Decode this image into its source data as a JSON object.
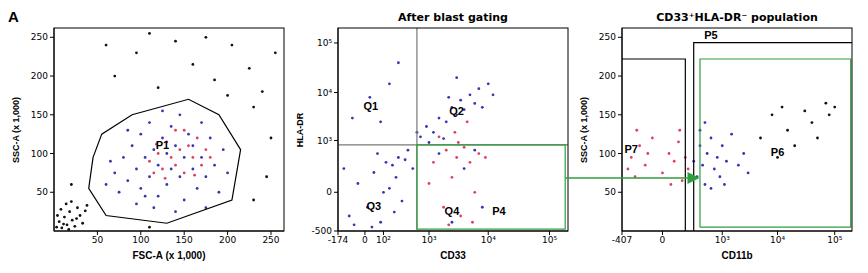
{
  "panel_label": "A",
  "chart_data": [
    {
      "type": "scatter",
      "x_label": "FSC-A (x 1,000)",
      "y_label": "SSC-A (x 1,000)",
      "xlim": [
        0,
        265
      ],
      "ylim": [
        0,
        262
      ],
      "xticks": [
        50,
        100,
        150,
        200,
        250
      ],
      "yticks": [
        50,
        100,
        150,
        200,
        250
      ],
      "series": [
        {
          "color": "#111111",
          "x": [
            3,
            6,
            9,
            12,
            15,
            18,
            21,
            24,
            27,
            30,
            8,
            14,
            33,
            36,
            4,
            20,
            11,
            26,
            38,
            17,
            70,
            95,
            120,
            140,
            160,
            185,
            205,
            225,
            240,
            255,
            110,
            200,
            60,
            175,
            230,
            250,
            245,
            230,
            110,
            20
          ],
          "y": [
            5,
            12,
            4,
            18,
            8,
            25,
            14,
            6,
            30,
            20,
            28,
            35,
            10,
            26,
            20,
            38,
            9,
            16,
            33,
            2,
            200,
            230,
            185,
            245,
            215,
            195,
            240,
            210,
            180,
            230,
            255,
            175,
            240,
            250,
            160,
            120,
            70,
            40,
            5,
            60
          ]
        },
        {
          "color": "#3636b0",
          "x": [
            60,
            70,
            75,
            80,
            85,
            90,
            95,
            100,
            100,
            105,
            110,
            110,
            115,
            120,
            120,
            125,
            130,
            130,
            135,
            135,
            140,
            145,
            145,
            150,
            150,
            155,
            160,
            160,
            165,
            170,
            170,
            175,
            180,
            185,
            190,
            195,
            200,
            95,
            115,
            140,
            65,
            85,
            125,
            105,
            175
          ],
          "y": [
            60,
            75,
            50,
            95,
            65,
            110,
            80,
            55,
            125,
            95,
            70,
            140,
            105,
            85,
            45,
            120,
            60,
            100,
            135,
            80,
            110,
            70,
            150,
            95,
            40,
            125,
            80,
            110,
            55,
            140,
            95,
            70,
            120,
            85,
            50,
            105,
            75,
            35,
            30,
            25,
            90,
            130,
            155,
            45,
            30
          ]
        },
        {
          "color": "#e0405f",
          "x": [
            110,
            115,
            120,
            125,
            130,
            135,
            140,
            145,
            150,
            155,
            160,
            165,
            170,
            175,
            140,
            128,
            150,
            118,
            162,
            180
          ],
          "y": [
            90,
            75,
            100,
            80,
            115,
            95,
            85,
            105,
            75,
            110,
            95,
            120,
            85,
            105,
            130,
            68,
            130,
            112,
            72,
            95
          ]
        }
      ],
      "gates": [
        {
          "color": "#000000",
          "x": [
            45,
            55,
            90,
            155,
            190,
            215,
            205,
            130,
            60,
            40,
            45
          ],
          "y": [
            95,
            125,
            150,
            170,
            150,
            105,
            40,
            10,
            20,
            55,
            95
          ]
        }
      ],
      "annotations": [
        {
          "text": "P1",
          "x": 125,
          "y": 110
        }
      ]
    },
    {
      "type": "scatter",
      "title": "After blast gating",
      "x_label": "CD33",
      "y_label": "HLA-DR",
      "log": true,
      "xlim": [
        -174,
        200000
      ],
      "ylim": [
        -500,
        200000
      ],
      "xticks": [
        -174,
        0,
        {
          "value": 100,
          "label": "10²"
        },
        {
          "value": 1000,
          "label": "10³"
        },
        {
          "value": 10000,
          "label": "10⁴"
        },
        {
          "value": 100000,
          "label": "10⁵"
        }
      ],
      "yticks": [
        -500,
        0,
        {
          "value": 1000,
          "label": "10³"
        },
        {
          "value": 10000,
          "label": "10⁴"
        },
        {
          "value": 100000,
          "label": "10⁵"
        }
      ],
      "series": [
        {
          "color": "#3636b0",
          "x": [
            -80,
            -30,
            10,
            40,
            80,
            120,
            150,
            200,
            250,
            -120,
            30,
            60,
            180,
            300,
            350,
            -50,
            100,
            220,
            400,
            500,
            700,
            900,
            1200,
            1500,
            2000,
            2500,
            3000,
            3500,
            4000,
            5000,
            6000,
            7000,
            8000,
            10000,
            1000,
            1800,
            2200,
            12000,
            600,
            3000,
            -60,
            20,
            150,
            80,
            250,
            1500,
            4000,
            8000,
            2500,
            6000
          ],
          "y": [
            -200,
            50,
            -100,
            150,
            -300,
            300,
            20,
            -150,
            400,
            200,
            -400,
            500,
            250,
            -50,
            350,
            -350,
            0,
            100,
            600,
            200,
            1200,
            2000,
            1500,
            3000,
            2500,
            5000,
            3500,
            7000,
            4500,
            9000,
            6000,
            12000,
            5000,
            15000,
            900,
            1100,
            8000,
            9000,
            1500,
            20000,
            3000,
            8000,
            15000,
            2500,
            40000,
            500,
            200,
            -100,
            -300,
            600
          ]
        },
        {
          "color": "#e0405f",
          "x": [
            1200,
            1800,
            2000,
            2500,
            3000,
            3500,
            4000,
            5000,
            6000,
            7000,
            2800,
            4500,
            1500,
            3200,
            9000,
            2200,
            5500,
            1000
          ],
          "y": [
            300,
            -100,
            600,
            100,
            400,
            -200,
            700,
            300,
            0,
            500,
            1500,
            2500,
            1200,
            900,
            400,
            -350,
            -300,
            50
          ]
        }
      ],
      "gates": [
        {
          "color": "#777777",
          "x": [
            600,
            600
          ],
          "y": [
            -500,
            200000
          ]
        },
        {
          "color": "#777777",
          "x": [
            -174,
            200000
          ],
          "y": [
            800,
            800
          ]
        },
        {
          "color": "#2e9e3e",
          "x": [
            600,
            180000,
            180000,
            600,
            600
          ],
          "y": [
            -450,
            -450,
            800,
            800,
            -450
          ]
        }
      ],
      "annotations": [
        {
          "text": "Q1",
          "x": 25,
          "y": 5000
        },
        {
          "text": "Q2",
          "x": 3000,
          "y": 4000
        },
        {
          "text": "Q3",
          "x": 40,
          "y": -100
        },
        {
          "text": "Q4",
          "x": 2500,
          "y": -150
        },
        {
          "text": "P4",
          "x": 15000,
          "y": -150
        }
      ]
    },
    {
      "type": "scatter",
      "title": "CD33⁺HLA-DR⁻ population",
      "x_label": "CD11b",
      "y_label": "SSC-A (x 1,000)",
      "log": "x",
      "xlim": [
        -407,
        200000
      ],
      "ylim": [
        0,
        262
      ],
      "xticks": [
        -407,
        0,
        {
          "value": 1000,
          "label": "10³"
        },
        {
          "value": 10000,
          "label": "10⁴"
        },
        {
          "value": 100000,
          "label": "10⁵"
        }
      ],
      "yticks": [
        50,
        100,
        150,
        200,
        250
      ],
      "series": [
        {
          "color": "#e0405f",
          "x": [
            -300,
            -250,
            -200,
            -150,
            -100,
            -50,
            0,
            30,
            60,
            90,
            120,
            150,
            -180,
            40,
            100,
            -80,
            180
          ],
          "y": [
            80,
            95,
            70,
            110,
            85,
            120,
            75,
            100,
            90,
            115,
            65,
            95,
            130,
            60,
            130,
            100,
            80
          ]
        },
        {
          "color": "#3636b0",
          "x": [
            250,
            300,
            350,
            400,
            450,
            500,
            600,
            700,
            800,
            900,
            1000,
            1200,
            1500,
            2000,
            2500,
            3000,
            350,
            600,
            1100,
            450
          ],
          "y": [
            90,
            70,
            110,
            85,
            60,
            100,
            120,
            80,
            95,
            70,
            110,
            90,
            125,
            85,
            100,
            75,
            130,
            55,
            60,
            140
          ]
        },
        {
          "color": "#111111",
          "x": [
            5000,
            8000,
            10000,
            15000,
            20000,
            30000,
            40000,
            50000,
            70000,
            80000,
            100000,
            12000
          ],
          "y": [
            120,
            150,
            95,
            130,
            110,
            155,
            140,
            120,
            165,
            150,
            160,
            160
          ]
        }
      ],
      "gates": [
        {
          "color": "#000000",
          "x": [
            -407,
            150,
            150
          ],
          "y": [
            222,
            222,
            0
          ]
        },
        {
          "color": "#000000",
          "x": [
            250,
            250,
            200000
          ],
          "y": [
            0,
            243,
            243
          ]
        },
        {
          "color": "#2e9e3e",
          "x": [
            350,
            350,
            190000,
            190000,
            350
          ],
          "y": [
            5,
            222,
            222,
            5,
            5
          ]
        }
      ],
      "annotations": [
        {
          "text": "P5",
          "x": 600,
          "y": 252
        },
        {
          "text": "P6",
          "x": 10000,
          "y": 100
        },
        {
          "text": "P7",
          "x": -250,
          "y": 105
        }
      ]
    }
  ]
}
